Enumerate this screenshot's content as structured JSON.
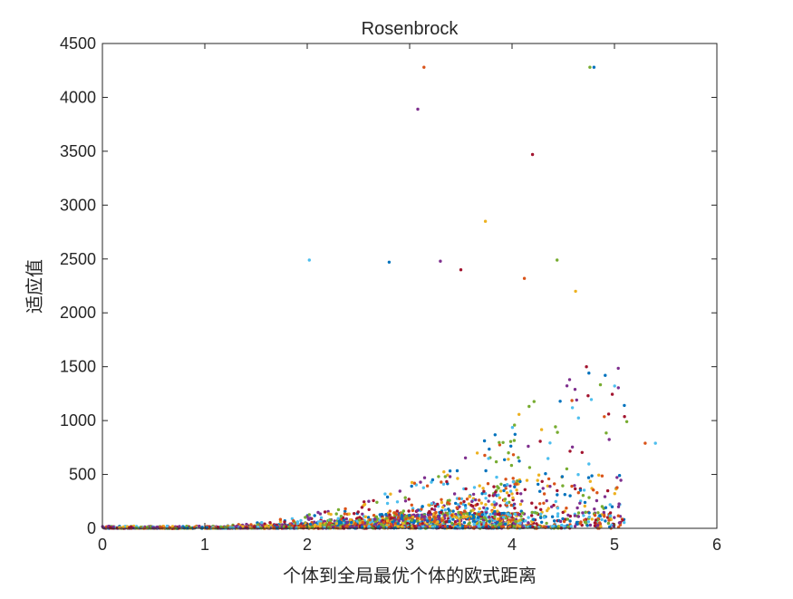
{
  "chart_data": {
    "type": "scatter",
    "title": "Rosenbrock",
    "xlabel": "个体到全局最优个体的欧式距离",
    "ylabel": "适应值",
    "xlim": [
      0,
      6
    ],
    "ylim": [
      0,
      4500
    ],
    "xticks": [
      "0",
      "1",
      "2",
      "3",
      "4",
      "5",
      "6"
    ],
    "yticks": [
      "0",
      "500",
      "1000",
      "1500",
      "2000",
      "2500",
      "3000",
      "3500",
      "4000",
      "4500"
    ],
    "grid": false,
    "box": true,
    "colors": [
      "#0072BD",
      "#D95319",
      "#EDB120",
      "#7E2F8E",
      "#77AC30",
      "#4DBEEE",
      "#A2142F"
    ],
    "notable_points": [
      {
        "x": 3.14,
        "y": 4280
      },
      {
        "x": 4.76,
        "y": 4280
      },
      {
        "x": 4.8,
        "y": 4280
      },
      {
        "x": 3.08,
        "y": 3890
      },
      {
        "x": 4.2,
        "y": 3470
      },
      {
        "x": 3.74,
        "y": 2850
      },
      {
        "x": 2.02,
        "y": 2490
      },
      {
        "x": 4.12,
        "y": 2320
      },
      {
        "x": 4.44,
        "y": 2490
      },
      {
        "x": 2.8,
        "y": 2470
      },
      {
        "x": 3.3,
        "y": 2480
      },
      {
        "x": 3.5,
        "y": 2400
      },
      {
        "x": 4.62,
        "y": 2200
      },
      {
        "x": 5.4,
        "y": 790
      },
      {
        "x": 5.3,
        "y": 790
      },
      {
        "x": 5.12,
        "y": 990
      },
      {
        "x": 5.05,
        "y": 490
      },
      {
        "x": 5.04,
        "y": 200
      }
    ]
  }
}
